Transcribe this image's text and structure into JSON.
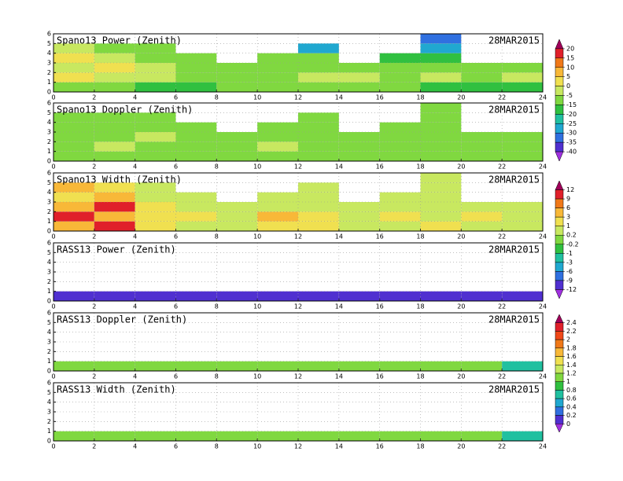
{
  "chart_data": [
    {
      "type": "heatmap",
      "title": "Spano13 Power (Zenith)",
      "date": "28MAR2015",
      "xlim": [
        0,
        24
      ],
      "xticks": [
        0,
        2,
        4,
        6,
        8,
        10,
        12,
        14,
        16,
        18,
        20,
        22,
        24
      ],
      "ylim": [
        0,
        6
      ],
      "yticks": [
        0,
        1,
        2,
        3,
        4,
        5,
        6
      ],
      "x_edges": [
        0,
        2,
        4,
        6,
        8,
        10,
        12,
        14,
        16,
        18,
        20,
        22,
        24
      ],
      "y_edges": [
        0,
        1,
        2,
        3,
        4,
        5,
        6
      ],
      "values": [
        [
          -15,
          -15,
          -20,
          -20,
          -15,
          -15,
          -15,
          -15,
          -15,
          -20,
          -20,
          -20
        ],
        [
          0,
          -5,
          -5,
          -10,
          -10,
          -10,
          -5,
          -5,
          -10,
          -5,
          -10,
          -5
        ],
        [
          -5,
          0,
          -5,
          -10,
          -10,
          -10,
          -10,
          -10,
          -10,
          -10,
          -10,
          -15
        ],
        [
          0,
          -5,
          -10,
          -10,
          null,
          -15,
          -15,
          null,
          -20,
          -20,
          null,
          null
        ],
        [
          -5,
          -10,
          -15,
          null,
          null,
          null,
          -30,
          null,
          null,
          -30,
          null,
          null
        ],
        [
          null,
          null,
          null,
          null,
          null,
          null,
          null,
          null,
          null,
          -35,
          null,
          null
        ]
      ]
    },
    {
      "type": "heatmap",
      "title": "Spano13 Doppler (Zenith)",
      "date": "28MAR2015",
      "xlim": [
        0,
        24
      ],
      "xticks": [
        0,
        2,
        4,
        6,
        8,
        10,
        12,
        14,
        16,
        18,
        20,
        22,
        24
      ],
      "ylim": [
        0,
        6
      ],
      "yticks": [
        0,
        1,
        2,
        3,
        4,
        5,
        6
      ],
      "x_edges": [
        0,
        2,
        4,
        6,
        8,
        10,
        12,
        14,
        16,
        18,
        20,
        22,
        24
      ],
      "y_edges": [
        0,
        1,
        2,
        3,
        4,
        5,
        6
      ],
      "values": [
        [
          -7,
          -7,
          -7,
          -7,
          -7,
          -7,
          -7,
          -7,
          -7,
          -7,
          -7,
          -7
        ],
        [
          -7,
          -2,
          -7,
          -7,
          -7,
          -2,
          -7,
          -7,
          -7,
          -7,
          -7,
          -7
        ],
        [
          -7,
          -7,
          -2,
          -7,
          -7,
          -7,
          -7,
          -7,
          -7,
          -7,
          -7,
          -7
        ],
        [
          -7,
          -7,
          -7,
          -7,
          null,
          -7,
          -7,
          null,
          -7,
          -7,
          null,
          null
        ],
        [
          -7,
          -7,
          -7,
          null,
          null,
          null,
          -7,
          null,
          null,
          -7,
          null,
          null
        ],
        [
          null,
          null,
          null,
          null,
          null,
          null,
          null,
          null,
          null,
          -7,
          null,
          null
        ]
      ]
    },
    {
      "type": "heatmap",
      "title": "Spano13 Width (Zenith)",
      "date": "28MAR2015",
      "xlim": [
        0,
        24
      ],
      "xticks": [
        0,
        2,
        4,
        6,
        8,
        10,
        12,
        14,
        16,
        18,
        20,
        22,
        24
      ],
      "ylim": [
        0,
        6
      ],
      "yticks": [
        0,
        1,
        2,
        3,
        4,
        5,
        6
      ],
      "x_edges": [
        0,
        2,
        4,
        6,
        8,
        10,
        12,
        14,
        16,
        18,
        20,
        22,
        24
      ],
      "y_edges": [
        0,
        1,
        2,
        3,
        4,
        5,
        6
      ],
      "values": [
        [
          5,
          10,
          2,
          0.5,
          0.5,
          2,
          2,
          0.5,
          0.5,
          2,
          0.5,
          0.5
        ],
        [
          10,
          5,
          2,
          2,
          0.5,
          5,
          2,
          0.5,
          2,
          0.5,
          2,
          0.5
        ],
        [
          5,
          10,
          2,
          0.5,
          0.5,
          0.5,
          0.5,
          0.5,
          0.5,
          0.5,
          0.5,
          0.5
        ],
        [
          2,
          5,
          0.5,
          0.5,
          null,
          0.5,
          0.5,
          null,
          0.5,
          0.5,
          null,
          null
        ],
        [
          5,
          2,
          0.5,
          null,
          null,
          null,
          0.5,
          null,
          null,
          0.5,
          null,
          null
        ],
        [
          null,
          null,
          null,
          null,
          null,
          null,
          null,
          null,
          null,
          0.5,
          null,
          null
        ]
      ]
    },
    {
      "type": "heatmap",
      "title": "RASS13 Power (Zenith)",
      "date": "28MAR2015",
      "xlim": [
        0,
        24
      ],
      "xticks": [
        0,
        2,
        4,
        6,
        8,
        10,
        12,
        14,
        16,
        18,
        20,
        22,
        24
      ],
      "ylim": [
        0,
        6
      ],
      "yticks": [
        0,
        1,
        2,
        3,
        4,
        5,
        6
      ],
      "x_edges": [
        0,
        2,
        4,
        6,
        8,
        10,
        12,
        14,
        16,
        18,
        20,
        22,
        24
      ],
      "y_edges": [
        0,
        1,
        2,
        3,
        4,
        5,
        6
      ],
      "values": [
        [
          -12,
          -12,
          -12,
          -12,
          -12,
          -12,
          -12,
          -12,
          -12,
          -12,
          -12,
          -12
        ],
        [
          null,
          null,
          null,
          null,
          null,
          null,
          null,
          null,
          null,
          null,
          null,
          null
        ],
        [
          null,
          null,
          null,
          null,
          null,
          null,
          null,
          null,
          null,
          null,
          null,
          null
        ],
        [
          null,
          null,
          null,
          null,
          null,
          null,
          null,
          null,
          null,
          null,
          null,
          null
        ],
        [
          null,
          null,
          null,
          null,
          null,
          null,
          null,
          null,
          null,
          null,
          null,
          null
        ],
        [
          null,
          null,
          null,
          null,
          null,
          null,
          null,
          null,
          null,
          null,
          null,
          null
        ]
      ]
    },
    {
      "type": "heatmap",
      "title": "RASS13 Doppler (Zenith)",
      "date": "28MAR2015",
      "xlim": [
        0,
        24
      ],
      "xticks": [
        0,
        2,
        4,
        6,
        8,
        10,
        12,
        14,
        16,
        18,
        20,
        22,
        24
      ],
      "ylim": [
        0,
        6
      ],
      "yticks": [
        0,
        1,
        2,
        3,
        4,
        5,
        6
      ],
      "x_edges": [
        0,
        2,
        4,
        6,
        8,
        10,
        12,
        14,
        16,
        18,
        20,
        22,
        24
      ],
      "y_edges": [
        0,
        1,
        2,
        3,
        4,
        5,
        6
      ],
      "values": [
        [
          1.1,
          1.1,
          1.1,
          1.1,
          1.1,
          1.1,
          1.1,
          1.1,
          1.1,
          1.1,
          1.1,
          0.7
        ],
        [
          null,
          null,
          null,
          null,
          null,
          null,
          null,
          null,
          null,
          null,
          null,
          null
        ],
        [
          null,
          null,
          null,
          null,
          null,
          null,
          null,
          null,
          null,
          null,
          null,
          null
        ],
        [
          null,
          null,
          null,
          null,
          null,
          null,
          null,
          null,
          null,
          null,
          null,
          null
        ],
        [
          null,
          null,
          null,
          null,
          null,
          null,
          null,
          null,
          null,
          null,
          null,
          null
        ],
        [
          null,
          null,
          null,
          null,
          null,
          null,
          null,
          null,
          null,
          null,
          null,
          null
        ]
      ]
    },
    {
      "type": "heatmap",
      "title": "RASS13 Width (Zenith)",
      "date": "28MAR2015",
      "xlim": [
        0,
        24
      ],
      "xticks": [
        0,
        2,
        4,
        6,
        8,
        10,
        12,
        14,
        16,
        18,
        20,
        22,
        24
      ],
      "ylim": [
        0,
        6
      ],
      "yticks": [
        0,
        1,
        2,
        3,
        4,
        5,
        6
      ],
      "x_edges": [
        0,
        2,
        4,
        6,
        8,
        10,
        12,
        14,
        16,
        18,
        20,
        22,
        24
      ],
      "y_edges": [
        0,
        1,
        2,
        3,
        4,
        5,
        6
      ],
      "values": [
        [
          1.1,
          1.1,
          1.1,
          1.1,
          1.1,
          1.1,
          1.1,
          1.1,
          1.1,
          1.1,
          1.1,
          0.7
        ],
        [
          null,
          null,
          null,
          null,
          null,
          null,
          null,
          null,
          null,
          null,
          null,
          null
        ],
        [
          null,
          null,
          null,
          null,
          null,
          null,
          null,
          null,
          null,
          null,
          null,
          null
        ],
        [
          null,
          null,
          null,
          null,
          null,
          null,
          null,
          null,
          null,
          null,
          null,
          null
        ],
        [
          null,
          null,
          null,
          null,
          null,
          null,
          null,
          null,
          null,
          null,
          null,
          null
        ],
        [
          null,
          null,
          null,
          null,
          null,
          null,
          null,
          null,
          null,
          null,
          null,
          null
        ]
      ]
    }
  ],
  "colorbars": [
    {
      "levels": [
        20,
        15,
        10,
        5,
        0,
        -5,
        -15,
        -20,
        -25,
        -30,
        -35,
        -40
      ],
      "colors": [
        "#a0005a",
        "#e0202a",
        "#f07818",
        "#f8b838",
        "#f0e050",
        "#c8e860",
        "#80d840",
        "#30c040",
        "#20c0a0",
        "#20a8d0",
        "#3070e0",
        "#5030d0",
        "#a030e0"
      ]
    },
    {
      "levels": [
        12,
        9,
        6,
        3,
        1,
        0.2,
        -0.2,
        -1,
        -3,
        -6,
        -9,
        -12
      ],
      "colors": [
        "#a0005a",
        "#e0202a",
        "#f07818",
        "#f8b838",
        "#f0e050",
        "#c8e860",
        "#80d840",
        "#30c040",
        "#20c0a0",
        "#20a8d0",
        "#3070e0",
        "#5030d0",
        "#a030e0"
      ]
    },
    {
      "levels": [
        2.4,
        2.2,
        2,
        1.8,
        1.6,
        1.4,
        1.2,
        1,
        0.8,
        0.6,
        0.4,
        0.2,
        0
      ],
      "colors": [
        "#a0005a",
        "#e0202a",
        "#f04818",
        "#f07818",
        "#f8b838",
        "#f0e050",
        "#c8e860",
        "#80d840",
        "#30c040",
        "#20c0a0",
        "#20a8d0",
        "#3070e0",
        "#5030d0",
        "#a030e0"
      ]
    }
  ]
}
